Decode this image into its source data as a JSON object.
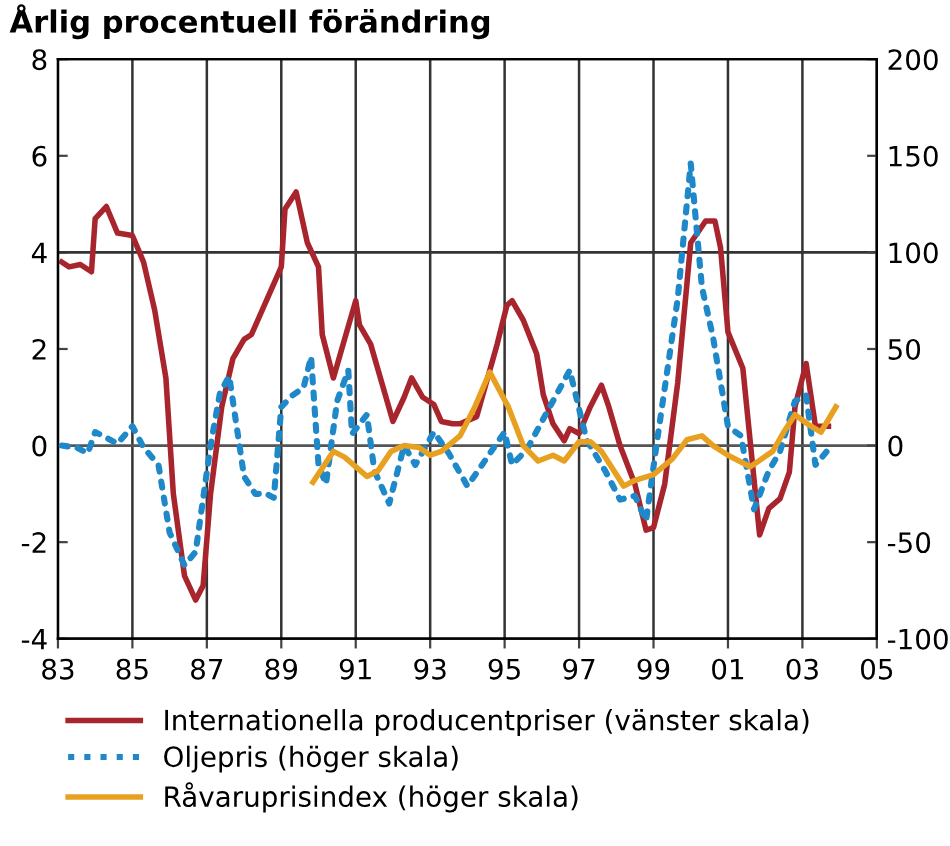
{
  "chart_data": {
    "type": "line",
    "title": "Årlig procentuell förändring",
    "xlim": [
      1983,
      2005
    ],
    "xticks": [
      {
        "value": 1983,
        "label": "83"
      },
      {
        "value": 1985,
        "label": "85"
      },
      {
        "value": 1987,
        "label": "87"
      },
      {
        "value": 1989,
        "label": "89"
      },
      {
        "value": 1991,
        "label": "91"
      },
      {
        "value": 1993,
        "label": "93"
      },
      {
        "value": 1995,
        "label": "95"
      },
      {
        "value": 1997,
        "label": "97"
      },
      {
        "value": 1999,
        "label": "99"
      },
      {
        "value": 2001,
        "label": "01"
      },
      {
        "value": 2003,
        "label": "03"
      },
      {
        "value": 2005,
        "label": "05"
      }
    ],
    "ylim": [
      -4,
      8
    ],
    "yticks": [
      -4,
      -2,
      0,
      2,
      4,
      6,
      8
    ],
    "y2lim": [
      -100,
      200
    ],
    "y2ticks": [
      -100,
      -50,
      0,
      50,
      100,
      150,
      200
    ],
    "grid": "x",
    "legend": "bottom",
    "ref_lines": [
      {
        "axis": "y",
        "value": 0,
        "label": null,
        "color": "#555555"
      },
      {
        "axis": "y",
        "value": 4,
        "label": null,
        "color": "#333333"
      }
    ],
    "series": [
      {
        "name": "Internationella producentpriser (vänster skala)",
        "color": "#a8252e",
        "line_style": "solid",
        "x": [
          1983.1,
          1983.3,
          1983.6,
          1983.9,
          1984.0,
          1984.3,
          1984.6,
          1985.0,
          1985.3,
          1985.6,
          1985.9,
          1986.1,
          1986.4,
          1986.7,
          1986.9,
          1987.1,
          1987.4,
          1987.7,
          1988.0,
          1988.2,
          1988.6,
          1989.0,
          1989.1,
          1989.4,
          1989.7,
          1990.0,
          1990.1,
          1990.4,
          1990.7,
          1991.0,
          1991.1,
          1991.4,
          1991.7,
          1992.0,
          1992.3,
          1992.5,
          1992.8,
          1993.1,
          1993.3,
          1993.6,
          1993.8,
          1994.25,
          1994.8,
          1995.06,
          1995.2,
          1995.5,
          1995.86,
          1996.04,
          1996.3,
          1996.6,
          1996.75,
          1997.0,
          1997.3,
          1997.6,
          1997.8,
          1998.1,
          1998.5,
          1998.8,
          1999.0,
          1999.3,
          1999.65,
          2000.0,
          2000.4,
          2000.65,
          2000.8,
          2001.0,
          2001.4,
          2001.85,
          2002.1,
          2002.4,
          2002.65,
          2002.8,
          2003.1,
          2003.35,
          2003.7
        ],
        "values": [
          3.8,
          3.7,
          3.75,
          3.6,
          4.7,
          4.95,
          4.4,
          4.35,
          3.8,
          2.8,
          1.4,
          -1.0,
          -2.7,
          -3.2,
          -2.9,
          -1.0,
          0.8,
          1.8,
          2.2,
          2.3,
          3.0,
          3.7,
          4.9,
          5.25,
          4.2,
          3.7,
          2.3,
          1.4,
          2.2,
          3.0,
          2.5,
          2.1,
          1.3,
          0.5,
          1.0,
          1.4,
          1.0,
          0.85,
          0.5,
          0.45,
          0.45,
          0.6,
          2.1,
          2.9,
          3.0,
          2.6,
          1.9,
          1.05,
          0.45,
          0.1,
          0.35,
          0.25,
          0.8,
          1.25,
          0.8,
          0,
          -0.8,
          -1.75,
          -1.7,
          -0.8,
          1.3,
          4.2,
          4.65,
          4.65,
          4.1,
          2.35,
          1.6,
          -1.85,
          -1.3,
          -1.1,
          -0.55,
          0.8,
          1.7,
          0.4,
          0.4
        ]
      },
      {
        "name": "Oljepris (höger skala)",
        "color": "#1f88c9",
        "line_style": "dotted",
        "axis": "y2",
        "x": [
          1983.1,
          1983.5,
          1983.8,
          1984.0,
          1984.4,
          1984.6,
          1985.0,
          1985.3,
          1985.7,
          1986.0,
          1986.4,
          1986.7,
          1987.1,
          1987.35,
          1987.6,
          1988.0,
          1988.3,
          1988.6,
          1988.8,
          1989.0,
          1989.3,
          1989.6,
          1989.8,
          1990.0,
          1990.2,
          1990.5,
          1990.8,
          1990.9,
          1991.3,
          1991.5,
          1991.9,
          1992.3,
          1992.6,
          1993.1,
          1993.5,
          1994.0,
          1994.5,
          1995.0,
          1995.2,
          1995.6,
          1996.1,
          1996.75,
          1997.2,
          1997.7,
          1998.1,
          1998.5,
          1998.8,
          1999.1,
          1999.65,
          2000.0,
          2000.3,
          2000.6,
          2001.0,
          2001.35,
          2001.7,
          2002.1,
          2002.4,
          2002.8,
          2003.1,
          2003.35,
          2003.7
        ],
        "values": [
          0,
          -1,
          -4,
          7,
          3,
          1,
          10,
          -1,
          -10,
          -45,
          -62,
          -55,
          0,
          27,
          36,
          -16,
          -25,
          -25,
          -27,
          20,
          26,
          30,
          46,
          -10,
          -20,
          23,
          39,
          6,
          16,
          -13,
          -30,
          0,
          -10,
          7,
          -4,
          -21,
          -7,
          7,
          -10,
          -2,
          16,
          39,
          3,
          -13,
          -28,
          -26,
          -39,
          3,
          76,
          146,
          82,
          56,
          10,
          5,
          -33,
          -13,
          -3,
          23,
          26,
          -10,
          -2
        ]
      },
      {
        "name": "Råvaruprisindex (höger skala)",
        "color": "#e8a021",
        "line_style": "solid",
        "axis": "y2",
        "x": [
          1989.85,
          1990.4,
          1990.7,
          1991.3,
          1991.6,
          1991.95,
          1992.3,
          1992.7,
          1993.0,
          1993.3,
          1993.8,
          1994.2,
          1994.6,
          1995.1,
          1995.5,
          1995.9,
          1996.3,
          1996.6,
          1997.0,
          1997.3,
          1997.6,
          1998.2,
          1998.5,
          1999.0,
          1999.5,
          1999.9,
          2000.3,
          2000.6,
          2001.0,
          2001.6,
          2002.2,
          2002.5,
          2002.8,
          2003.15,
          2003.5,
          2003.9
        ],
        "values": [
          -19,
          -3,
          -6,
          -16,
          -13,
          -3,
          0,
          -1,
          -5,
          -3,
          5,
          20,
          38,
          20,
          0,
          -8,
          -5,
          -8,
          2,
          2,
          -3,
          -21,
          -18,
          -15,
          -7,
          3,
          5,
          0,
          -5,
          -11,
          -3,
          7,
          16,
          11,
          7,
          20
        ]
      }
    ]
  }
}
